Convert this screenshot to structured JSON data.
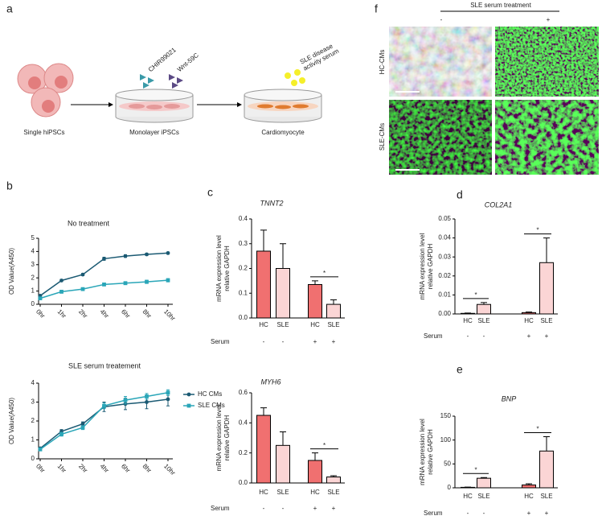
{
  "panels": [
    "a",
    "b",
    "c",
    "d",
    "e",
    "f"
  ],
  "diagram": {
    "labels": [
      "Single hiPSCs",
      "Monolayer iPSCs",
      "Cardiomyocyte"
    ],
    "reagents": [
      "CHIR99021",
      "Wnt-59C"
    ],
    "serum": [
      "SLE disease",
      "activity serum"
    ]
  },
  "images": {
    "header": "SLE serum treatment",
    "columns": [
      "-",
      "+"
    ],
    "rows": [
      "HC-CMs",
      "SLE-CMs"
    ]
  },
  "chart_data": [
    {
      "type": "line",
      "title": "No treatment",
      "ylabel": "OD Value(A450)",
      "categories": [
        "0hr",
        "1hr",
        "2hr",
        "4hr",
        "6hr",
        "8hr",
        "10hr"
      ],
      "series": [
        {
          "name": "HC CMs",
          "color": "#1b5a73",
          "marker": "circle",
          "values": [
            0.65,
            1.8,
            2.25,
            3.45,
            3.65,
            3.78,
            3.88
          ],
          "errors": [
            0.03,
            0.08,
            0.08,
            0.12,
            0.1,
            0.08,
            0.05
          ]
        },
        {
          "name": "SLE CMs",
          "color": "#2aa6b8",
          "marker": "square",
          "values": [
            0.45,
            0.95,
            1.15,
            1.5,
            1.6,
            1.7,
            1.82
          ],
          "errors": [
            0.03,
            0.05,
            0.05,
            0.1,
            0.1,
            0.12,
            0.12
          ]
        }
      ],
      "ylim": [
        0,
        5
      ],
      "yticks": [
        0,
        1,
        2,
        3,
        4,
        5
      ]
    },
    {
      "type": "line",
      "title": "SLE serum treatement",
      "ylabel": "OD Value(A450)",
      "categories": [
        "0hr",
        "1hr",
        "2hr",
        "4hr",
        "6hr",
        "8hr",
        "10hr"
      ],
      "series": [
        {
          "name": "HC CMs",
          "color": "#1b5a73",
          "marker": "circle",
          "values": [
            0.55,
            1.45,
            1.85,
            2.75,
            2.9,
            3.0,
            3.15
          ],
          "errors": [
            0.05,
            0.1,
            0.1,
            0.25,
            0.3,
            0.35,
            0.35
          ]
        },
        {
          "name": "SLE CMs",
          "color": "#2aa6b8",
          "marker": "square",
          "values": [
            0.5,
            1.3,
            1.65,
            2.8,
            3.1,
            3.3,
            3.5
          ],
          "errors": [
            0.05,
            0.1,
            0.1,
            0.15,
            0.2,
            0.15,
            0.15
          ]
        }
      ],
      "ylim": [
        0,
        4
      ],
      "yticks": [
        0,
        1,
        2,
        3,
        4
      ],
      "legend": "right"
    },
    {
      "type": "bar",
      "title": "TNNT2",
      "ylabel": [
        "mRNA expression level",
        "relative GAPDH"
      ],
      "categories": [
        "HC",
        "SLE",
        "HC",
        "SLE"
      ],
      "values": [
        0.27,
        0.2,
        0.135,
        0.055
      ],
      "errors": [
        0.085,
        0.1,
        0.015,
        0.018
      ],
      "colors": [
        "#f07070",
        "#fbd5d5",
        "#f07070",
        "#fbd5d5"
      ],
      "serum_label": "Serum",
      "serum": [
        "-",
        "-",
        "+",
        "+"
      ],
      "annotations": [
        {
          "text": "*",
          "between": [
            2,
            3
          ]
        }
      ],
      "ylim": [
        0,
        0.4
      ],
      "yticks": [
        {
          "value": 0,
          "label": "0.0"
        },
        0.1,
        0.2,
        0.3,
        0.4
      ]
    },
    {
      "type": "bar",
      "title": "MYH6",
      "ylabel": [
        "mRNA expression level",
        "relative GAPDH"
      ],
      "categories": [
        "HC",
        "SLE",
        "HC",
        "SLE"
      ],
      "values": [
        0.45,
        0.25,
        0.15,
        0.04
      ],
      "errors": [
        0.05,
        0.09,
        0.05,
        0.008
      ],
      "colors": [
        "#f07070",
        "#fbd5d5",
        "#f07070",
        "#fbd5d5"
      ],
      "serum_label": "Serum",
      "serum": [
        "-",
        "-",
        "+",
        "+"
      ],
      "annotations": [
        {
          "text": "*",
          "between": [
            2,
            3
          ]
        }
      ],
      "ylim": [
        0,
        0.6
      ],
      "yticks": [
        {
          "value": 0,
          "label": "0.0"
        },
        0.2,
        0.4,
        0.6
      ]
    },
    {
      "type": "bar",
      "title": "COL2A1",
      "ylabel": [
        "mRNA expression level",
        "relative GAPDH"
      ],
      "categories": [
        "HC",
        "SLE",
        "HC",
        "SLE"
      ],
      "values": [
        0.0003,
        0.005,
        0.0007,
        0.027
      ],
      "errors": [
        0.0002,
        0.001,
        0.0003,
        0.013
      ],
      "colors": [
        "#f07070",
        "#fbd5d5",
        "#f07070",
        "#fbd5d5"
      ],
      "serum_label": "Serum",
      "serum": [
        "-",
        "-",
        "+",
        "+"
      ],
      "annotations": [
        {
          "text": "*",
          "between": [
            0,
            1
          ]
        },
        {
          "text": "*",
          "between": [
            2,
            3
          ]
        }
      ],
      "ylim": [
        0,
        0.05
      ],
      "yticks": [
        {
          "value": 0,
          "label": "0.00"
        },
        {
          "value": 0.01,
          "label": "0.01"
        },
        {
          "value": 0.02,
          "label": "0.02"
        },
        {
          "value": 0.03,
          "label": "0.03"
        },
        {
          "value": 0.04,
          "label": "0.04"
        },
        {
          "value": 0.05,
          "label": "0.05"
        }
      ]
    },
    {
      "type": "bar",
      "title": "BNP",
      "ylabel": [
        "mRNA expression level",
        "relative GAPDH"
      ],
      "categories": [
        "HC",
        "SLE",
        "HC",
        "SLE"
      ],
      "values": [
        1,
        20,
        6,
        77
      ],
      "errors": [
        0.5,
        1.5,
        2.5,
        30
      ],
      "colors": [
        "#f07070",
        "#fbd5d5",
        "#f07070",
        "#fbd5d5"
      ],
      "serum_label": "Serum",
      "serum": [
        "-",
        "-",
        "+",
        "+"
      ],
      "annotations": [
        {
          "text": "*",
          "between": [
            0,
            1
          ]
        },
        {
          "text": "*",
          "between": [
            2,
            3
          ]
        }
      ],
      "ylim": [
        0,
        150
      ],
      "yticks": [
        0,
        50,
        100,
        150
      ]
    }
  ]
}
